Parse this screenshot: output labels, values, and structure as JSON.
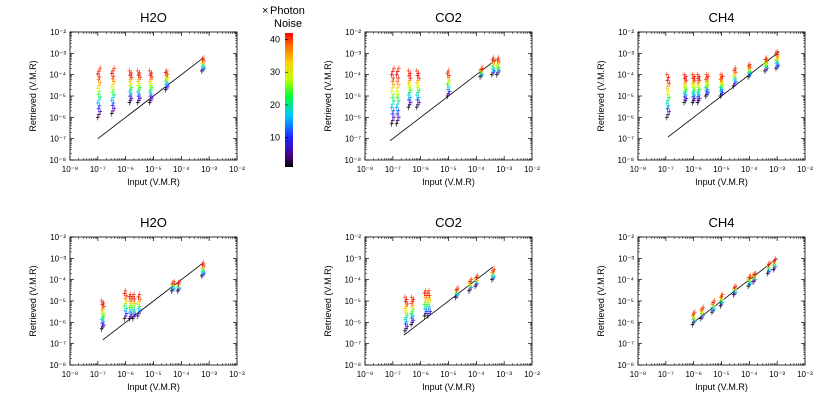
{
  "colorbar": {
    "title_symbol": "×",
    "title_line1": "Photon",
    "title_line2": "Noise",
    "range": [
      1,
      42
    ],
    "ticks": [
      "40",
      "30",
      "20",
      "10"
    ],
    "tick_values": [
      40,
      30,
      20,
      10
    ]
  },
  "chart_data": [
    {
      "type": "scatter",
      "title": "H2O",
      "xlabel": "Input (V.M.R)",
      "ylabel": "Retrieved (V.M.R)",
      "xscale": "log",
      "yscale": "log",
      "xlim": [
        1e-08,
        0.01
      ],
      "ylim": [
        1e-08,
        0.01
      ],
      "xticks": [
        "10⁻⁸",
        "10⁻⁷",
        "10⁻⁶",
        "10⁻⁵",
        "10⁻⁴",
        "10⁻³",
        "10⁻²"
      ],
      "yticks": [
        "10⁻²",
        "10⁻³",
        "10⁻⁴",
        "10⁻⁵",
        "10⁻⁶",
        "10⁻⁷",
        "10⁻⁸"
      ],
      "one_to_one_line": [
        1e-07,
        0.0006
      ],
      "columns": [
        {
          "x": 1.1e-07,
          "y_low": 1e-06,
          "y_high": 0.0002,
          "n": 18
        },
        {
          "x": 3.5e-07,
          "y_low": 1.5e-06,
          "y_high": 0.0002,
          "n": 18
        },
        {
          "x": 1.5e-06,
          "y_low": 5e-06,
          "y_high": 0.00015,
          "n": 16
        },
        {
          "x": 3e-06,
          "y_low": 5e-06,
          "y_high": 0.00015,
          "n": 16
        },
        {
          "x": 8e-06,
          "y_low": 5e-06,
          "y_high": 0.00015,
          "n": 16
        },
        {
          "x": 3e-05,
          "y_low": 2e-05,
          "y_high": 0.00015,
          "n": 12
        },
        {
          "x": 0.0006,
          "y_low": 0.00015,
          "y_high": 0.0006,
          "n": 10
        }
      ]
    },
    {
      "type": "scatter",
      "title": "CO2",
      "xlabel": "Input (V.M.R)",
      "ylabel": "Retrieved (V.M.R)",
      "xscale": "log",
      "yscale": "log",
      "xlim": [
        1e-08,
        0.01
      ],
      "ylim": [
        1e-08,
        0.01
      ],
      "xticks": [
        "10⁻⁸",
        "10⁻⁷",
        "10⁻⁶",
        "10⁻⁵",
        "10⁻⁴",
        "10⁻³",
        "10⁻²"
      ],
      "yticks": [
        "10⁻²",
        "10⁻³",
        "10⁻⁴",
        "10⁻⁵",
        "10⁻⁶",
        "10⁻⁷",
        "10⁻⁸"
      ],
      "one_to_one_line": [
        8e-08,
        0.0005
      ],
      "columns": [
        {
          "x": 1e-07,
          "y_low": 5e-07,
          "y_high": 0.0002,
          "n": 18
        },
        {
          "x": 1.5e-07,
          "y_low": 5e-07,
          "y_high": 0.0002,
          "n": 18
        },
        {
          "x": 4e-07,
          "y_low": 3e-06,
          "y_high": 0.00015,
          "n": 16
        },
        {
          "x": 8e-07,
          "y_low": 3e-06,
          "y_high": 0.00015,
          "n": 16
        },
        {
          "x": 1e-05,
          "y_low": 1e-05,
          "y_high": 0.00015,
          "n": 12
        },
        {
          "x": 0.00015,
          "y_low": 8e-05,
          "y_high": 0.0002,
          "n": 8
        },
        {
          "x": 0.0004,
          "y_low": 0.0001,
          "y_high": 0.0006,
          "n": 10
        },
        {
          "x": 0.0006,
          "y_low": 0.0001,
          "y_high": 0.0006,
          "n": 10
        }
      ]
    },
    {
      "type": "scatter",
      "title": "CH4",
      "xlabel": "Input (V.M.R)",
      "ylabel": "Retrieved (V.M.R)",
      "xscale": "log",
      "yscale": "log",
      "xlim": [
        1e-08,
        0.01
      ],
      "ylim": [
        1e-08,
        0.01
      ],
      "xticks": [
        "10⁻⁸",
        "10⁻⁷",
        "10⁻⁶",
        "10⁻⁵",
        "10⁻⁴",
        "10⁻³",
        "10⁻²"
      ],
      "yticks": [
        "10⁻²",
        "10⁻³",
        "10⁻⁴",
        "10⁻⁵",
        "10⁻⁶",
        "10⁻⁷",
        "10⁻⁸"
      ],
      "one_to_one_line": [
        1.2e-07,
        0.0012
      ],
      "columns": [
        {
          "x": 1.2e-07,
          "y_low": 1e-06,
          "y_high": 0.0001,
          "n": 16
        },
        {
          "x": 5e-07,
          "y_low": 5e-06,
          "y_high": 0.0001,
          "n": 16
        },
        {
          "x": 1e-06,
          "y_low": 5e-06,
          "y_high": 0.0001,
          "n": 16
        },
        {
          "x": 1.5e-06,
          "y_low": 5e-06,
          "y_high": 0.0001,
          "n": 16
        },
        {
          "x": 3e-06,
          "y_low": 1e-05,
          "y_high": 0.0001,
          "n": 14
        },
        {
          "x": 1e-05,
          "y_low": 1e-05,
          "y_high": 0.0001,
          "n": 14
        },
        {
          "x": 3e-05,
          "y_low": 3e-05,
          "y_high": 0.0002,
          "n": 10
        },
        {
          "x": 0.0001,
          "y_low": 8e-05,
          "y_high": 0.0003,
          "n": 10
        },
        {
          "x": 0.0004,
          "y_low": 0.00015,
          "y_high": 0.0006,
          "n": 10
        },
        {
          "x": 0.001,
          "y_low": 0.0002,
          "y_high": 0.0012,
          "n": 12
        }
      ]
    },
    {
      "type": "scatter",
      "title": "H2O",
      "xlabel": "Input (V.M.R)",
      "ylabel": "Retrieved (V.M.R)",
      "xscale": "log",
      "yscale": "log",
      "xlim": [
        1e-08,
        0.01
      ],
      "ylim": [
        1e-08,
        0.01
      ],
      "xticks": [
        "10⁻⁸",
        "10⁻⁷",
        "10⁻⁶",
        "10⁻⁵",
        "10⁻⁴",
        "10⁻³",
        "10⁻²"
      ],
      "yticks": [
        "10⁻²",
        "10⁻³",
        "10⁻⁴",
        "10⁻⁵",
        "10⁻⁶",
        "10⁻⁷",
        "10⁻⁸"
      ],
      "one_to_one_line": [
        1.5e-07,
        0.0006
      ],
      "columns": [
        {
          "x": 1.5e-07,
          "y_low": 5e-07,
          "y_high": 1e-05,
          "n": 16
        },
        {
          "x": 1e-06,
          "y_low": 1.5e-06,
          "y_high": 3e-05,
          "n": 12
        },
        {
          "x": 1.5e-06,
          "y_low": 1.5e-06,
          "y_high": 2e-05,
          "n": 12
        },
        {
          "x": 2e-06,
          "y_low": 1.5e-06,
          "y_high": 2e-05,
          "n": 12
        },
        {
          "x": 3e-06,
          "y_low": 2e-06,
          "y_high": 2e-05,
          "n": 10
        },
        {
          "x": 5e-05,
          "y_low": 3e-05,
          "y_high": 8e-05,
          "n": 8
        },
        {
          "x": 8e-05,
          "y_low": 3e-05,
          "y_high": 8e-05,
          "n": 8
        },
        {
          "x": 0.0006,
          "y_low": 0.00015,
          "y_high": 0.0006,
          "n": 10
        }
      ]
    },
    {
      "type": "scatter",
      "title": "CO2",
      "xlabel": "Input (V.M.R)",
      "ylabel": "Retrieved (V.M.R)",
      "xscale": "log",
      "yscale": "log",
      "xlim": [
        1e-08,
        0.01
      ],
      "ylim": [
        1e-08,
        0.01
      ],
      "xticks": [
        "10⁻⁸",
        "10⁻⁷",
        "10⁻⁶",
        "10⁻⁵",
        "10⁻⁴",
        "10⁻³",
        "10⁻²"
      ],
      "yticks": [
        "10⁻²",
        "10⁻³",
        "10⁻⁴",
        "10⁻⁵",
        "10⁻⁶",
        "10⁻⁷",
        "10⁻⁸"
      ],
      "one_to_one_line": [
        2.5e-07,
        0.0004
      ],
      "columns": [
        {
          "x": 3e-07,
          "y_low": 4e-07,
          "y_high": 1.5e-05,
          "n": 16
        },
        {
          "x": 5e-07,
          "y_low": 8e-07,
          "y_high": 1.5e-05,
          "n": 14
        },
        {
          "x": 1.5e-06,
          "y_low": 2e-06,
          "y_high": 3e-05,
          "n": 12
        },
        {
          "x": 2e-06,
          "y_low": 2e-06,
          "y_high": 3e-05,
          "n": 12
        },
        {
          "x": 2e-05,
          "y_low": 1.5e-05,
          "y_high": 4e-05,
          "n": 8
        },
        {
          "x": 6e-05,
          "y_low": 3e-05,
          "y_high": 0.0001,
          "n": 8
        },
        {
          "x": 0.0001,
          "y_low": 5e-05,
          "y_high": 0.00015,
          "n": 8
        },
        {
          "x": 0.0004,
          "y_low": 0.0001,
          "y_high": 0.0003,
          "n": 8
        }
      ]
    },
    {
      "type": "scatter",
      "title": "CH4",
      "xlabel": "Input (V.M.R)",
      "ylabel": "Retrieved (V.M.R)",
      "xscale": "log",
      "yscale": "log",
      "xlim": [
        1e-08,
        0.01
      ],
      "ylim": [
        1e-08,
        0.01
      ],
      "xticks": [
        "10⁻⁸",
        "10⁻⁷",
        "10⁻⁶",
        "10⁻⁵",
        "10⁻⁴",
        "10⁻³",
        "10⁻²"
      ],
      "yticks": [
        "10⁻²",
        "10⁻³",
        "10⁻⁴",
        "10⁻⁵",
        "10⁻⁶",
        "10⁻⁷",
        "10⁻⁸"
      ],
      "one_to_one_line": [
        1e-06,
        0.001
      ],
      "columns": [
        {
          "x": 1e-06,
          "y_low": 8e-07,
          "y_high": 3e-06,
          "n": 8
        },
        {
          "x": 2e-06,
          "y_low": 1.5e-06,
          "y_high": 5e-06,
          "n": 8
        },
        {
          "x": 5e-06,
          "y_low": 3e-06,
          "y_high": 1e-05,
          "n": 8
        },
        {
          "x": 1e-05,
          "y_low": 6e-06,
          "y_high": 2e-05,
          "n": 8
        },
        {
          "x": 3e-05,
          "y_low": 2e-05,
          "y_high": 5e-05,
          "n": 8
        },
        {
          "x": 0.0001,
          "y_low": 5e-05,
          "y_high": 0.00015,
          "n": 8
        },
        {
          "x": 0.00015,
          "y_low": 8e-05,
          "y_high": 0.0002,
          "n": 8
        },
        {
          "x": 0.0005,
          "y_low": 0.0002,
          "y_high": 0.0006,
          "n": 8
        },
        {
          "x": 0.0008,
          "y_low": 0.0003,
          "y_high": 0.0009,
          "n": 8
        }
      ]
    }
  ]
}
